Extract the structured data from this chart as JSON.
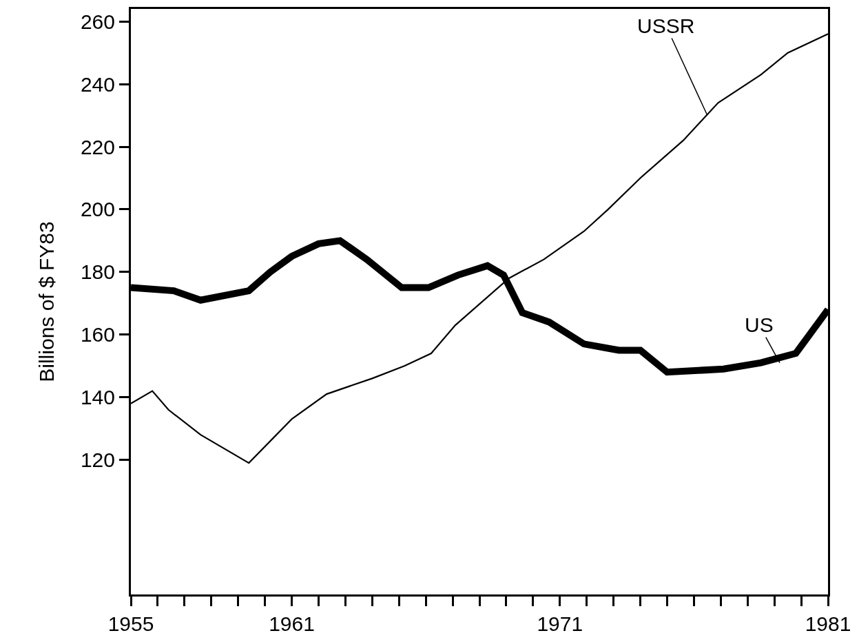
{
  "chart_data": {
    "type": "line",
    "ylabel": "Billions of $ FY83",
    "series": [
      {
        "color": "#000000",
        "x": [
          1955,
          1956.6,
          1957.6,
          1959.4,
          1960.2,
          1961,
          1962,
          1962.8,
          1963.8,
          1965.1,
          1966.1,
          1967.2,
          1968.3,
          1968.9,
          1969.6,
          1970.6,
          1971.9,
          1973.2,
          1974,
          1975,
          1977.1,
          1978.5,
          1979.8,
          1981
        ],
        "values": [
          175,
          174,
          171,
          174,
          180,
          185,
          189,
          190,
          184,
          175,
          175,
          179,
          182,
          179,
          167,
          164,
          157,
          155,
          155,
          148,
          149,
          151,
          154,
          168
        ]
      },
      {
        "color": "#000000",
        "x": [
          1955,
          1955.8,
          1956.4,
          1957.6,
          1959.4,
          1961,
          1962.3,
          1964,
          1965.2,
          1966.2,
          1967.1,
          1969.1,
          1970.4,
          1971.9,
          1972.8,
          1974,
          1975.6,
          1976.9,
          1978.5,
          1979.5,
          1981
        ],
        "values": [
          138,
          142,
          136,
          128,
          119,
          133,
          141,
          146,
          150,
          154,
          163,
          178,
          184,
          193,
          200,
          210,
          222,
          234,
          243,
          250,
          256
        ]
      }
    ],
    "annotations": [
      {
        "text": "USSR",
        "x": 1976.5,
        "y": 230
      },
      {
        "text": "US",
        "x": 1979.2,
        "y": 151
      }
    ],
    "xlim": [
      1955,
      1981
    ],
    "ylim": [
      77,
      264
    ],
    "xticks": [
      1955,
      {
        "value": 1956,
        "label": null
      },
      {
        "value": 1957,
        "label": null
      },
      {
        "value": 1958,
        "label": null
      },
      {
        "value": 1959,
        "label": null
      },
      {
        "value": 1960,
        "label": null
      },
      1961,
      {
        "value": 1962,
        "label": null
      },
      {
        "value": 1963,
        "label": null
      },
      {
        "value": 1964,
        "label": null
      },
      {
        "value": 1965,
        "label": null
      },
      {
        "value": 1966,
        "label": null
      },
      {
        "value": 1967,
        "label": null
      },
      {
        "value": 1968,
        "label": null
      },
      {
        "value": 1969,
        "label": null
      },
      {
        "value": 1970,
        "label": null
      },
      1971,
      {
        "value": 1972,
        "label": null
      },
      {
        "value": 1973,
        "label": null
      },
      {
        "value": 1974,
        "label": null
      },
      {
        "value": 1975,
        "label": null
      },
      {
        "value": 1976,
        "label": null
      },
      {
        "value": 1977,
        "label": null
      },
      {
        "value": 1978,
        "label": null
      },
      {
        "value": 1979,
        "label": null
      },
      {
        "value": 1980,
        "label": null
      },
      1981
    ],
    "yticks": [
      120,
      140,
      160,
      180,
      200,
      220,
      240,
      260
    ],
    "legend": false,
    "marker": "none",
    "line_style": "solid"
  }
}
